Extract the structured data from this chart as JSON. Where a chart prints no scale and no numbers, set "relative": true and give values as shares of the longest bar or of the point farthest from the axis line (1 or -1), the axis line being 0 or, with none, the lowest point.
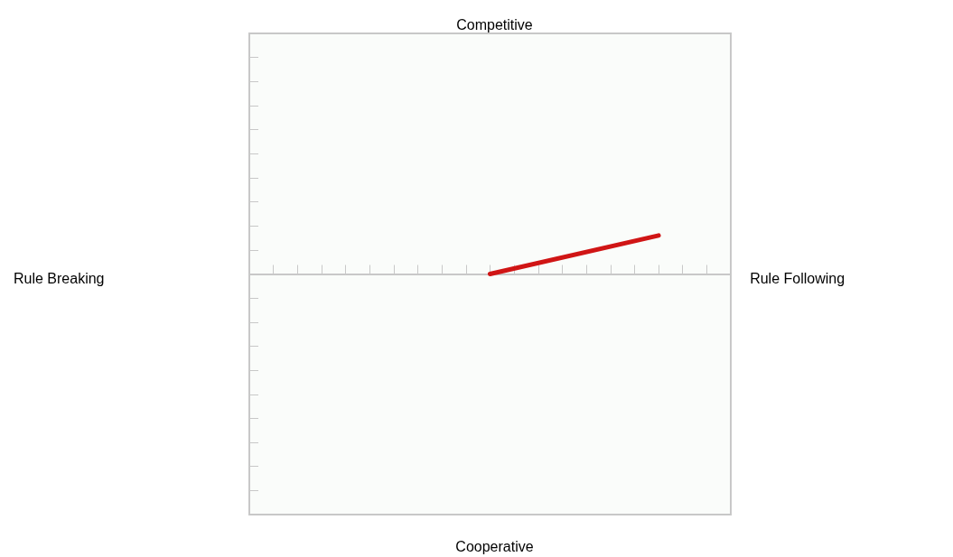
{
  "chart_data": {
    "type": "line",
    "annotations": [
      "Competitive",
      "Rule Breaking",
      "Rule Following",
      "Cooperative"
    ],
    "categories": [
      null,
      null,
      null,
      null,
      null,
      null,
      null,
      null,
      null,
      null,
      null,
      null,
      null,
      null,
      null,
      null,
      null,
      null,
      null,
      null,
      null
    ],
    "relative": true,
    "series": [
      {
        "color": "#d01515",
        "values": [
          null,
          null,
          null,
          null,
          null,
          null,
          null,
          null,
          null,
          null,
          0,
          null,
          null,
          null,
          null,
          null,
          null,
          1,
          null,
          null,
          null
        ]
      }
    ],
    "marker": "none",
    "line_style": "solid"
  }
}
